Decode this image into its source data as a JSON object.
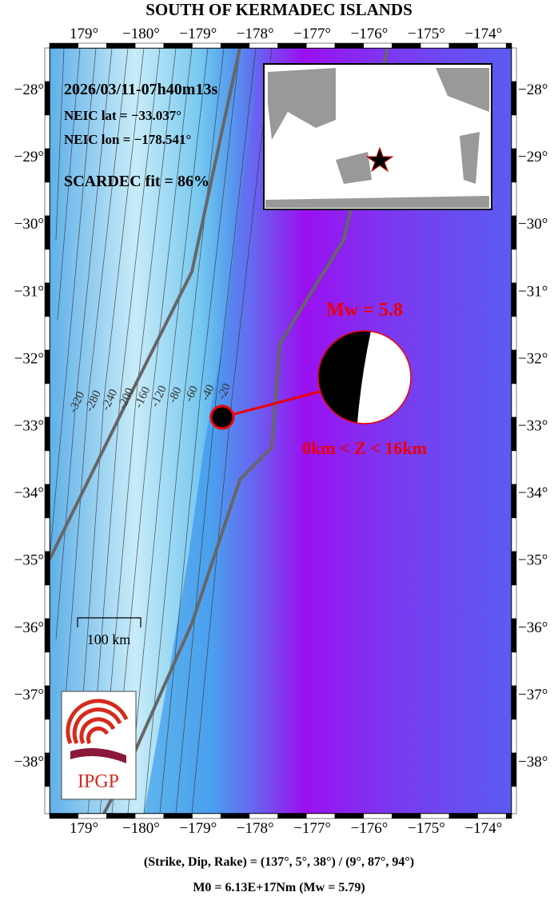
{
  "title": "SOUTH OF KERMADEC ISLANDS",
  "lon_labels": [
    "179°",
    "−180°",
    "−179°",
    "−178°",
    "−177°",
    "−176°",
    "−175°",
    "−174°"
  ],
  "lat_labels": [
    "−28°",
    "−29°",
    "−30°",
    "−31°",
    "−32°",
    "−33°",
    "−34°",
    "−35°",
    "−36°",
    "−37°",
    "−38°"
  ],
  "info": {
    "date": "2026/03/11-07h40m13s",
    "lat": "NEIC lat  = −33.037°",
    "lon": "NEIC lon = −178.541°",
    "fit": "SCARDEC fit = 86%"
  },
  "magnitude": "Mw = 5.8",
  "depth": "0km < Z <  16km",
  "scale": "100 km",
  "contours": [
    "-320",
    "-280",
    "-240",
    "-200",
    "-160",
    "-120",
    "-80",
    "-60",
    "-40",
    "-20"
  ],
  "logo": "IPGP",
  "footer": [
    "(Strike, Dip, Rake) = (137°, 5°, 38°) / (9°, 87°, 94°)",
    "M0 = 6.13E+17Nm  (Mw = 5.79)"
  ]
}
